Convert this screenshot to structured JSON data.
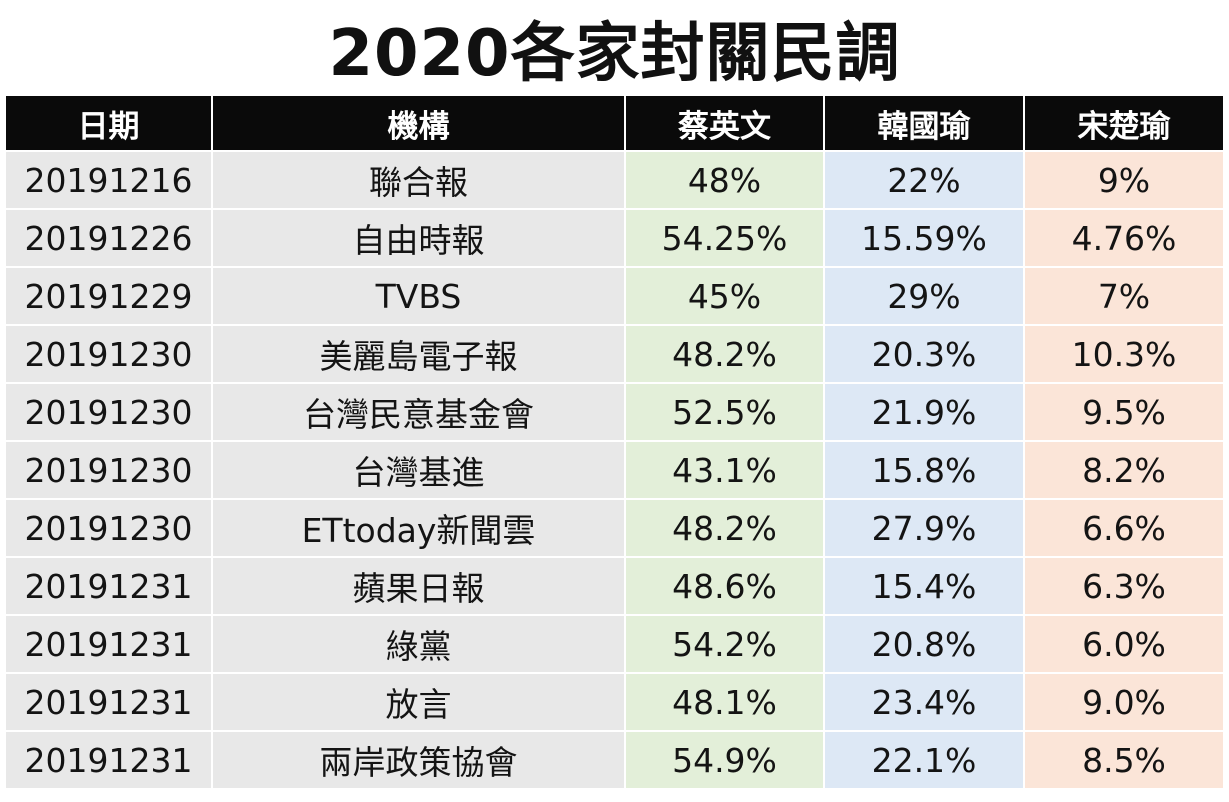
{
  "title": "2020各家封關民調",
  "table": {
    "headers": [
      "日期",
      "機構",
      "蔡英文",
      "韓國瑜",
      "宋楚瑜"
    ],
    "rows": [
      {
        "date": "20191216",
        "org": "聯合報",
        "tsai": "48%",
        "han": "22%",
        "soong": "9%"
      },
      {
        "date": "20191226",
        "org": "自由時報",
        "tsai": "54.25%",
        "han": "15.59%",
        "soong": "4.76%"
      },
      {
        "date": "20191229",
        "org": "TVBS",
        "tsai": "45%",
        "han": "29%",
        "soong": "7%"
      },
      {
        "date": "20191230",
        "org": "美麗島電子報",
        "tsai": "48.2%",
        "han": "20.3%",
        "soong": "10.3%"
      },
      {
        "date": "20191230",
        "org": "台灣民意基金會",
        "tsai": "52.5%",
        "han": "21.9%",
        "soong": "9.5%"
      },
      {
        "date": "20191230",
        "org": "台灣基進",
        "tsai": "43.1%",
        "han": "15.8%",
        "soong": "8.2%"
      },
      {
        "date": "20191230",
        "org": "ETtoday新聞雲",
        "tsai": "48.2%",
        "han": "27.9%",
        "soong": "6.6%"
      },
      {
        "date": "20191231",
        "org": "蘋果日報",
        "tsai": "48.6%",
        "han": "15.4%",
        "soong": "6.3%"
      },
      {
        "date": "20191231",
        "org": "綠黨",
        "tsai": "54.2%",
        "han": "20.8%",
        "soong": "6.0%"
      },
      {
        "date": "20191231",
        "org": "放言",
        "tsai": "48.1%",
        "han": "23.4%",
        "soong": "9.0%"
      },
      {
        "date": "20191231",
        "org": "兩岸政策協會",
        "tsai": "54.9%",
        "han": "22.1%",
        "soong": "8.5%"
      }
    ]
  },
  "colors": {
    "header_bg": "#0a0a0a",
    "header_text": "#ffffff",
    "date_org_bg": "#e8e8e8",
    "tsai_bg": "#e3efd9",
    "han_bg": "#dde8f5",
    "soong_bg": "#fbe5d8"
  }
}
